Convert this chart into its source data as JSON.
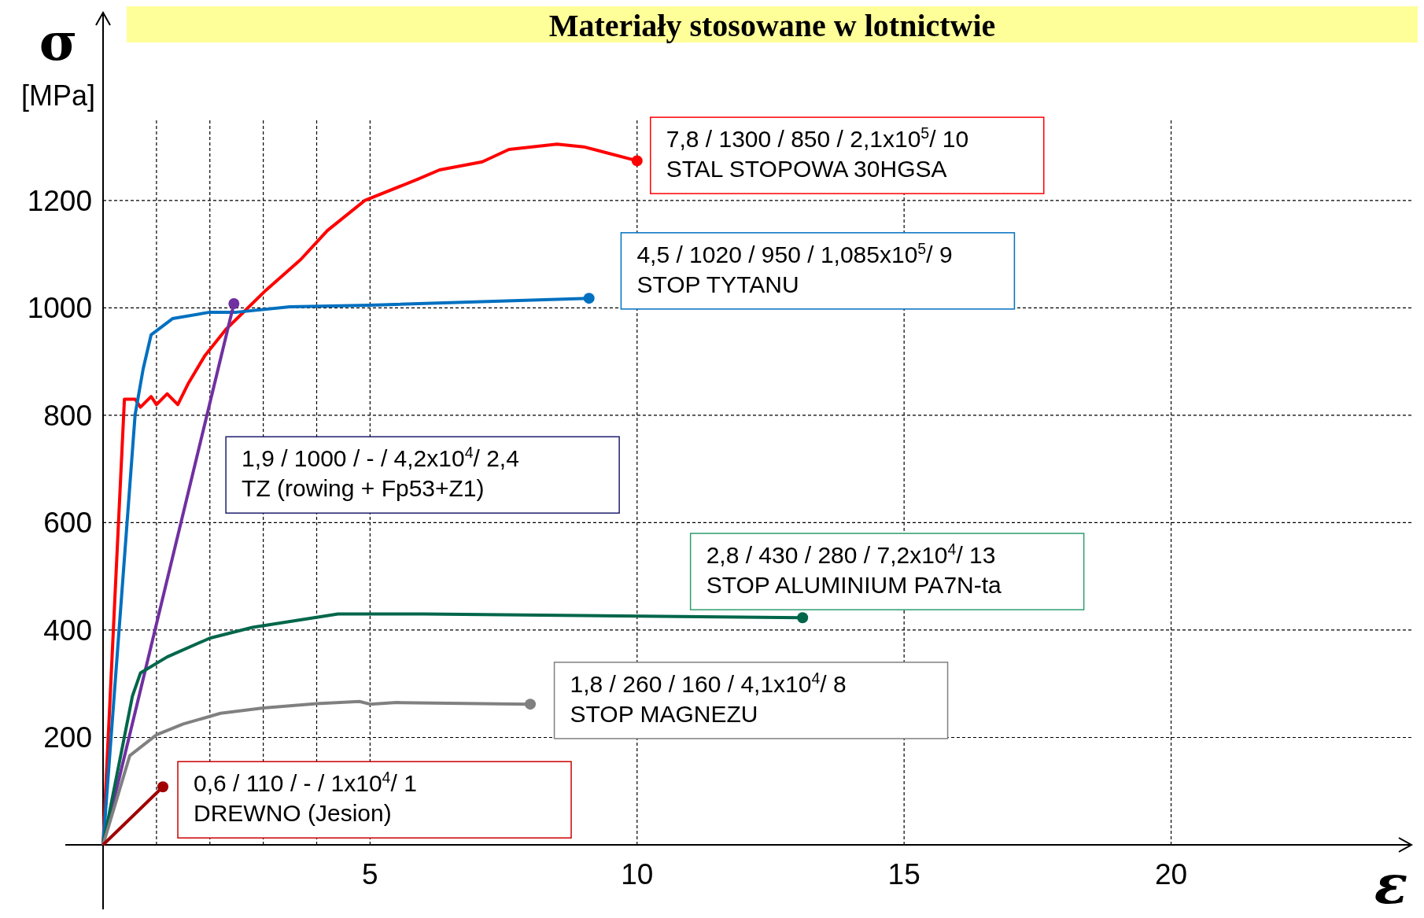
{
  "chart_data": {
    "type": "line",
    "title": "Materiały stosowane w lotnictwie",
    "xlabel": "ε",
    "ylabel": "σ\n[MPa]",
    "xlim": [
      0,
      24.5
    ],
    "ylim": [
      0,
      1550
    ],
    "xticks": [
      {
        "value": 1,
        "label": null
      },
      {
        "value": 2,
        "label": null
      },
      {
        "value": 3,
        "label": null
      },
      {
        "value": 4,
        "label": null
      },
      5,
      10,
      15,
      20
    ],
    "yticks": [
      200,
      400,
      600,
      800,
      1000,
      1200
    ],
    "grid": true,
    "line_style": "solid",
    "series": [
      {
        "color": "#ff0000",
        "x": [
          0,
          0.4,
          0.6,
          0.7,
          0.9,
          1.0,
          1.2,
          1.4,
          1.6,
          1.9,
          2.3,
          3.05,
          3.7,
          4.2,
          4.9,
          5.9,
          6.3,
          7.1,
          7.6,
          8.5,
          9,
          10
        ],
        "values": [
          0,
          830,
          830,
          815,
          835,
          820,
          840,
          820,
          860,
          910,
          960,
          1033,
          1090,
          1144,
          1200,
          1240,
          1257,
          1272,
          1295,
          1305,
          1300,
          1274
        ]
      },
      {
        "color": "#0070c0",
        "x": [
          0,
          0.6,
          0.75,
          0.9,
          1.3,
          2,
          2.5,
          3.5,
          5,
          9.1
        ],
        "values": [
          0,
          801,
          886,
          950,
          980,
          992,
          992,
          1002,
          1005,
          1018
        ]
      },
      {
        "color": "#7030a0",
        "x": [
          0,
          2.45
        ],
        "values": [
          0,
          1008
        ]
      },
      {
        "color": "#00664a",
        "x": [
          0,
          0.55,
          0.7,
          1.2,
          2,
          2.8,
          4.4,
          6,
          13.1
        ],
        "values": [
          0,
          277,
          320,
          350,
          385,
          405,
          430,
          430,
          423
        ]
      },
      {
        "color": "#808080",
        "x": [
          0,
          0.5,
          1,
          1.5,
          2.2,
          3,
          4,
          4.8,
          5,
          5.5,
          8
        ],
        "values": [
          0,
          166,
          205,
          225,
          245,
          255,
          263,
          267,
          262,
          265,
          262
        ]
      },
      {
        "color": "#a00000",
        "x": [
          0,
          1.12
        ],
        "values": [
          0,
          108
        ]
      },
      {
        "type": "scatter",
        "marker": "circle",
        "x": [
          10,
          9.1,
          2.45,
          13.1,
          8,
          1.12
        ],
        "values": [
          1274,
          1018,
          1008,
          423,
          262,
          108
        ],
        "colors": [
          "#ff0000",
          "#0070c0",
          "#7030a0",
          "#00664a",
          "#808080",
          "#a00000"
        ]
      }
    ],
    "annotations": [
      "7,8 / 1300 / 850 / 2,1x10$^{5}$/ 10\nSTAL STOPOWA 30HGSA",
      "4,5 / 1020 / 950 / 1,085x10$^{5}$/ 9\nSTOP TYTANU",
      "1,9 / 1000 /  -  / 4,2x10$^{4}$/ 2,4\nTZ (rowing + Fp53+Z1)",
      "2,8 / 430 / 280  / 7,2x10$^{4}$/ 13\nSTOP ALUMINIUM PA7N-ta",
      "1,8 / 260 / 160  / 4,1x10$^{4}$/ 8\nSTOP MAGNEZU",
      "0,6 / 110 / -  / 1x10$^{4}$/ 1\nDREWNO (Jesion)"
    ]
  }
}
